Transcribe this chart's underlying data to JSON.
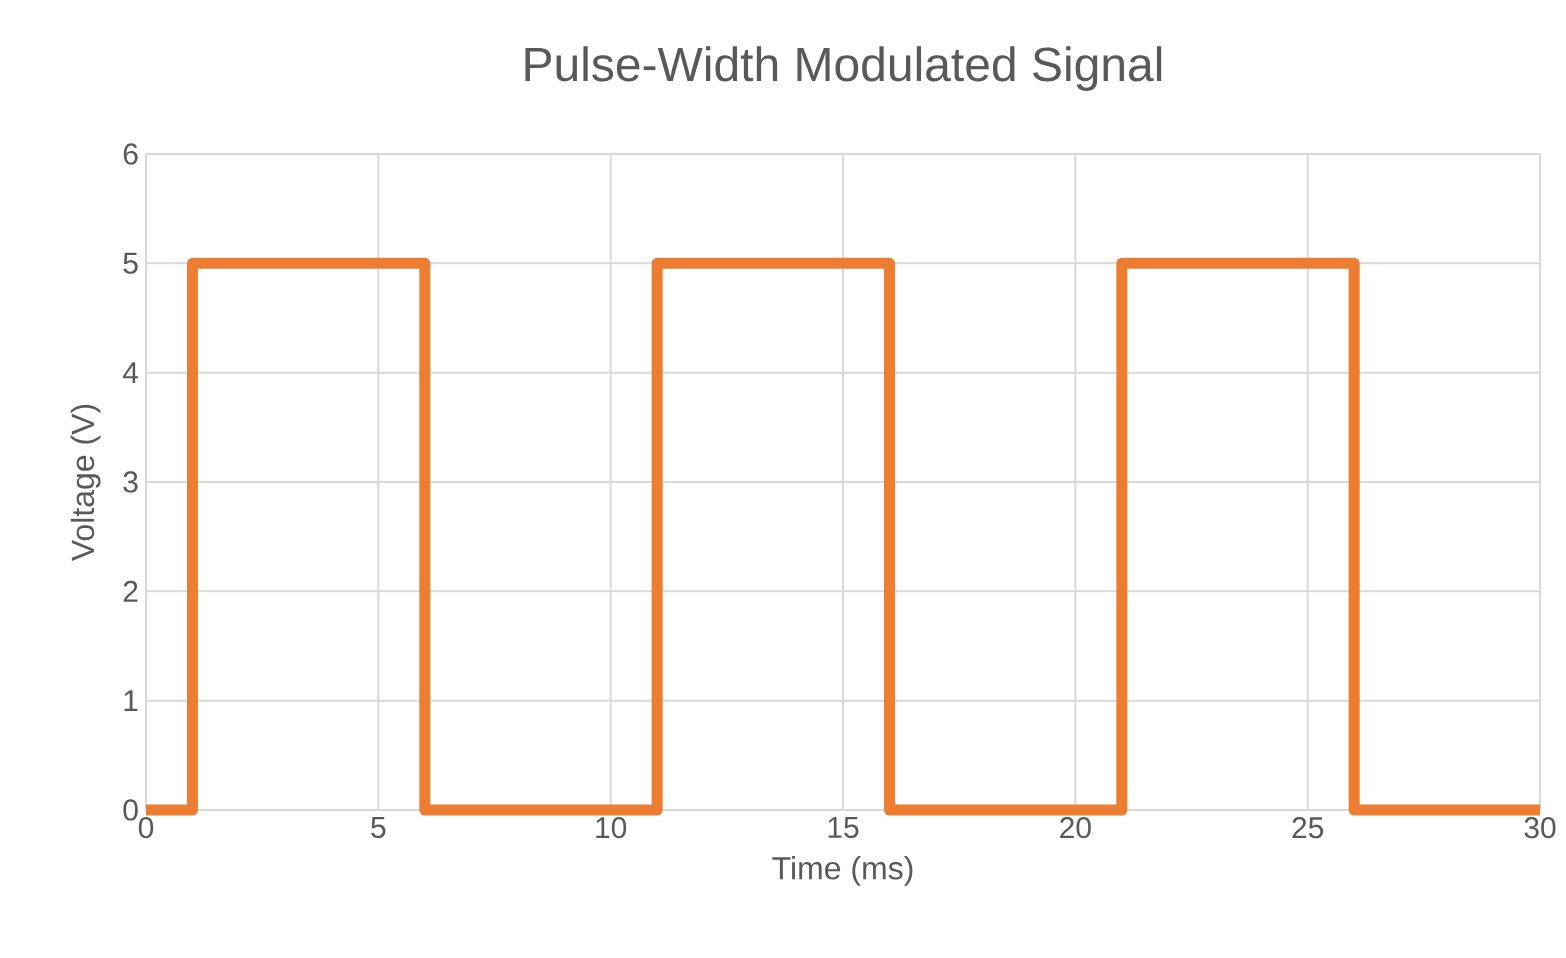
{
  "chart_data": {
    "type": "line",
    "title": "Pulse-Width Modulated Signal",
    "xlabel": "Time (ms)",
    "ylabel": "Voltage (V)",
    "x": [
      0,
      1,
      1,
      6,
      6,
      11,
      11,
      16,
      16,
      21,
      21,
      26,
      26,
      30
    ],
    "values": [
      0,
      0,
      5,
      5,
      0,
      0,
      5,
      5,
      0,
      0,
      5,
      5,
      0,
      0
    ],
    "color": "#ed7d31",
    "xlim": [
      0,
      30
    ],
    "ylim": [
      0,
      6
    ],
    "xticks": [
      0,
      5,
      10,
      15,
      20,
      25,
      30
    ],
    "yticks": [
      0,
      1,
      2,
      3,
      4,
      5,
      6
    ],
    "grid": true
  }
}
